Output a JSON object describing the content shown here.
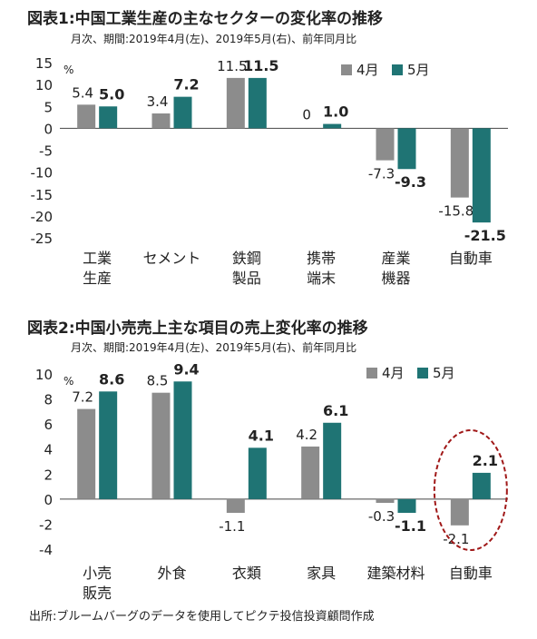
{
  "source": "出所:ブルームバーグのデータを使用してピクテ投信投資顧問作成",
  "chart_data": [
    {
      "type": "bar",
      "title": "図表1:中国工業生産の主なセクターの変化率の推移",
      "subtitle": "月次、期間:2019年4月(左)、2019年5月(右)、前年同月比",
      "unit": "%",
      "categories": [
        [
          "工業",
          "生産"
        ],
        [
          "セメント"
        ],
        [
          "鉄鋼",
          "製品"
        ],
        [
          "携帯",
          "端末"
        ],
        [
          "産業",
          "機器"
        ],
        [
          "自動車"
        ]
      ],
      "series": [
        {
          "name": "4月",
          "color": "#8c8c8c",
          "values": [
            5.4,
            3.4,
            11.5,
            0,
            -7.3,
            -15.8
          ]
        },
        {
          "name": "5月",
          "color": "#1f7474",
          "values": [
            5.0,
            7.2,
            11.5,
            1.0,
            -9.3,
            -21.5
          ]
        }
      ],
      "ylim": [
        -25,
        15
      ],
      "yticks": [
        15,
        10,
        5,
        0,
        -5,
        -10,
        -15,
        -20,
        -25
      ],
      "legend": "top-right"
    },
    {
      "type": "bar",
      "title": "図表2:中国小売売上主な項目の売上変化率の推移",
      "subtitle": "月次、期間:2019年4月(左)、2019年5月(右)、前年同月比",
      "unit": "%",
      "categories": [
        [
          "小売",
          "販売"
        ],
        [
          "外食"
        ],
        [
          "衣類"
        ],
        [
          "家具"
        ],
        [
          "建築材料"
        ],
        [
          "自動車"
        ]
      ],
      "series": [
        {
          "name": "4月",
          "color": "#8c8c8c",
          "values": [
            7.2,
            8.5,
            -1.1,
            4.2,
            -0.3,
            -2.1
          ]
        },
        {
          "name": "5月",
          "color": "#1f7474",
          "values": [
            8.6,
            9.4,
            4.1,
            6.1,
            -1.1,
            2.1
          ]
        }
      ],
      "ylim": [
        -4,
        10
      ],
      "yticks": [
        10,
        8,
        6,
        4,
        2,
        0,
        -2,
        -4
      ],
      "legend": "top-right",
      "highlight_category": "自動車"
    }
  ]
}
